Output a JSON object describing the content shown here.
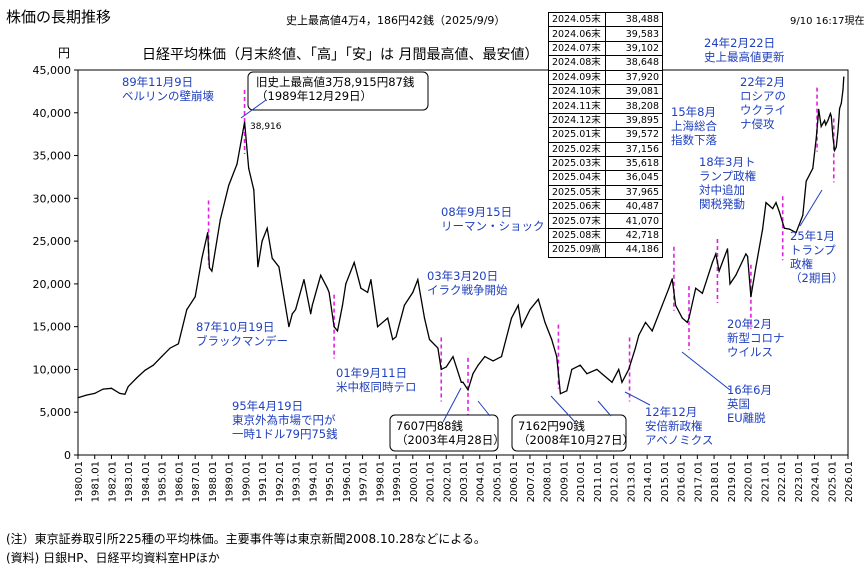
{
  "header": {
    "title": "株価の長期推移",
    "record_text": "史上最高値4万4，186円42銭（2025/9/9）",
    "timestamp": "9/10 16:17現在",
    "subtitle": "日経平均株価（月末終値、「高」「安」は 月間最高値、最安値）",
    "y_unit": "円"
  },
  "monthly_table": [
    {
      "month": "2024.05末",
      "value": "38,488"
    },
    {
      "month": "2024.06末",
      "value": "39,583"
    },
    {
      "month": "2024.07末",
      "value": "39,102"
    },
    {
      "month": "2024.08末",
      "value": "38,648"
    },
    {
      "month": "2024.09末",
      "value": "37,920"
    },
    {
      "month": "2024.10末",
      "value": "39,081"
    },
    {
      "month": "2024.11末",
      "value": "38,208"
    },
    {
      "month": "2024.12末",
      "value": "39,895"
    },
    {
      "month": "2025.01末",
      "value": "39,572"
    },
    {
      "month": "2025.02末",
      "value": "37,156"
    },
    {
      "month": "2025.03末",
      "value": "35,618"
    },
    {
      "month": "2025.04末",
      "value": "36,045"
    },
    {
      "month": "2025.05末",
      "value": "37,965"
    },
    {
      "month": "2025.06末",
      "value": "40,487"
    },
    {
      "month": "2025.07末",
      "value": "41,070"
    },
    {
      "month": "2025.08末",
      "value": "42,718"
    },
    {
      "month": "2025.09高",
      "value": "44,186"
    }
  ],
  "notes": [
    "(注）東京証券取引所225種の平均株価。主要事件等は東京新聞2008.10.28などによる。",
    "(資料) 日銀HP、日経平均資料室HPほか"
  ],
  "chart_data": {
    "type": "line",
    "title": "日経平均株価（月末終値、「高」「安」は 月間最高値、最安値）",
    "ylabel": "円",
    "ylim": [
      0,
      45000
    ],
    "yticks": [
      0,
      5000,
      10000,
      15000,
      20000,
      25000,
      30000,
      35000,
      40000,
      45000
    ],
    "ytick_labels": [
      "0",
      "5,000",
      "10,000",
      "15,000",
      "20,000",
      "25,000",
      "30,000",
      "35,000",
      "40,000",
      "45,000"
    ],
    "xlim": [
      1980.0,
      2026.0
    ],
    "xtick_labels": [
      "1980.01",
      "1981.01",
      "1982.01",
      "1983.01",
      "1984.01",
      "1985.01",
      "1986.01",
      "1987.01",
      "1988.01",
      "1989.01",
      "1990.01",
      "1991.01",
      "1992.01",
      "1993.01",
      "1994.01",
      "1995.01",
      "1996.01",
      "1997.01",
      "1998.01",
      "1999.01",
      "2000.01",
      "2001.01",
      "2002.01",
      "2003.01",
      "2004.01",
      "2005.01",
      "2006.01",
      "2007.01",
      "2008.01",
      "2009.01",
      "2010.01",
      "2011.01",
      "2012.01",
      "2013.01",
      "2014.01",
      "2015.01",
      "2016.01",
      "2017.01",
      "2018.01",
      "2019.01",
      "2020.01",
      "2021.01",
      "2022.01",
      "2023.01",
      "2024.01",
      "2025.01",
      "2026.01"
    ],
    "grid": false,
    "series": [
      {
        "points": [
          [
            1980.0,
            6700
          ],
          [
            1980.5,
            7000
          ],
          [
            1981.0,
            7200
          ],
          [
            1981.5,
            7700
          ],
          [
            1982.0,
            7800
          ],
          [
            1982.5,
            7200
          ],
          [
            1982.8,
            7100
          ],
          [
            1983.0,
            8000
          ],
          [
            1983.5,
            9000
          ],
          [
            1984.0,
            9900
          ],
          [
            1984.5,
            10500
          ],
          [
            1985.0,
            11500
          ],
          [
            1985.5,
            12500
          ],
          [
            1986.0,
            13000
          ],
          [
            1986.5,
            17000
          ],
          [
            1987.0,
            18500
          ],
          [
            1987.4,
            23000
          ],
          [
            1987.75,
            26000
          ],
          [
            1987.85,
            21900
          ],
          [
            1988.0,
            21500
          ],
          [
            1988.5,
            27500
          ],
          [
            1989.0,
            31500
          ],
          [
            1989.5,
            34000
          ],
          [
            1989.95,
            38916
          ],
          [
            1990.2,
            33500
          ],
          [
            1990.5,
            31000
          ],
          [
            1990.75,
            22000
          ],
          [
            1991.0,
            25000
          ],
          [
            1991.3,
            26500
          ],
          [
            1991.6,
            23000
          ],
          [
            1992.0,
            22000
          ],
          [
            1992.6,
            15000
          ],
          [
            1992.8,
            16500
          ],
          [
            1993.0,
            17000
          ],
          [
            1993.5,
            20500
          ],
          [
            1993.9,
            16500
          ],
          [
            1994.0,
            17500
          ],
          [
            1994.5,
            21000
          ],
          [
            1994.9,
            19500
          ],
          [
            1995.0,
            19000
          ],
          [
            1995.3,
            15000
          ],
          [
            1995.5,
            14500
          ],
          [
            1995.8,
            17500
          ],
          [
            1996.0,
            20000
          ],
          [
            1996.5,
            22500
          ],
          [
            1996.9,
            19500
          ],
          [
            1997.3,
            19000
          ],
          [
            1997.5,
            20500
          ],
          [
            1997.9,
            15000
          ],
          [
            1998.5,
            16000
          ],
          [
            1998.8,
            13500
          ],
          [
            1999.0,
            13800
          ],
          [
            1999.5,
            17500
          ],
          [
            2000.0,
            19000
          ],
          [
            2000.3,
            20500
          ],
          [
            2000.7,
            16000
          ],
          [
            2001.0,
            13500
          ],
          [
            2001.5,
            12500
          ],
          [
            2001.7,
            10000
          ],
          [
            2002.0,
            10300
          ],
          [
            2002.4,
            11500
          ],
          [
            2002.9,
            8500
          ],
          [
            2003.0,
            8500
          ],
          [
            2003.3,
            7607
          ],
          [
            2003.6,
            9500
          ],
          [
            2003.9,
            10500
          ],
          [
            2004.3,
            11500
          ],
          [
            2004.8,
            11000
          ],
          [
            2005.3,
            11500
          ],
          [
            2005.9,
            16000
          ],
          [
            2006.3,
            17500
          ],
          [
            2006.5,
            15000
          ],
          [
            2007.0,
            17000
          ],
          [
            2007.5,
            18200
          ],
          [
            2007.9,
            15500
          ],
          [
            2008.3,
            13500
          ],
          [
            2008.6,
            11500
          ],
          [
            2008.82,
            7162
          ],
          [
            2009.2,
            7500
          ],
          [
            2009.5,
            10000
          ],
          [
            2010.0,
            10500
          ],
          [
            2010.4,
            9500
          ],
          [
            2011.0,
            10000
          ],
          [
            2011.3,
            9500
          ],
          [
            2011.9,
            8500
          ],
          [
            2012.3,
            10000
          ],
          [
            2012.5,
            8500
          ],
          [
            2012.9,
            10000
          ],
          [
            2013.3,
            12500
          ],
          [
            2013.5,
            14000
          ],
          [
            2013.9,
            15500
          ],
          [
            2014.3,
            14500
          ],
          [
            2014.9,
            17500
          ],
          [
            2015.3,
            19500
          ],
          [
            2015.5,
            20600
          ],
          [
            2015.7,
            17500
          ],
          [
            2016.1,
            16000
          ],
          [
            2016.4,
            15500
          ],
          [
            2016.5,
            16000
          ],
          [
            2016.9,
            19500
          ],
          [
            2017.3,
            18900
          ],
          [
            2017.9,
            22500
          ],
          [
            2018.1,
            23500
          ],
          [
            2018.3,
            21500
          ],
          [
            2018.8,
            24100
          ],
          [
            2018.95,
            20000
          ],
          [
            2019.3,
            21000
          ],
          [
            2019.9,
            23500
          ],
          [
            2020.0,
            23200
          ],
          [
            2020.2,
            18500
          ],
          [
            2020.5,
            22000
          ],
          [
            2020.9,
            26400
          ],
          [
            2021.1,
            29500
          ],
          [
            2021.5,
            28800
          ],
          [
            2021.7,
            29500
          ],
          [
            2021.9,
            28400
          ],
          [
            2022.2,
            26500
          ],
          [
            2022.5,
            26400
          ],
          [
            2022.9,
            26000
          ],
          [
            2023.3,
            28000
          ],
          [
            2023.5,
            32000
          ],
          [
            2023.9,
            33500
          ],
          [
            2024.1,
            37000
          ],
          [
            2024.2,
            39200
          ],
          [
            2024.25,
            40400
          ],
          [
            2024.4,
            38400
          ],
          [
            2024.6,
            39100
          ],
          [
            2024.67,
            38600
          ],
          [
            2024.8,
            39100
          ],
          [
            2024.95,
            39900
          ],
          [
            2025.0,
            39600
          ],
          [
            2025.1,
            37200
          ],
          [
            2025.2,
            35600
          ],
          [
            2025.3,
            36000
          ],
          [
            2025.4,
            37900
          ],
          [
            2025.5,
            40500
          ],
          [
            2025.6,
            41100
          ],
          [
            2025.7,
            42700
          ],
          [
            2025.75,
            44186
          ]
        ]
      }
    ],
    "event_markers": [
      1987.8,
      1989.95,
      1995.3,
      2001.7,
      2003.3,
      2008.7,
      2012.95,
      2015.6,
      2016.5,
      2018.2,
      2020.2,
      2022.1,
      2024.15,
      2025.15
    ],
    "annotations": [
      {
        "id": "berlin",
        "lines": [
          "89年11月9日",
          "ベルリンの壁崩壊"
        ]
      },
      {
        "id": "peak",
        "lines": [
          "旧史上最高値3万8,915円87銭",
          "（1989年12月29日）"
        ]
      },
      {
        "id": "peak-value",
        "lines": [
          "38,916"
        ]
      },
      {
        "id": "black-monday",
        "lines": [
          "87年10月19日",
          "ブラックマンデー"
        ]
      },
      {
        "id": "yen79",
        "lines": [
          "95年4月19日",
          "東京外為市場で円が",
          "一時1ドル79円75銭"
        ]
      },
      {
        "id": "sep11",
        "lines": [
          "01年9月11日",
          "米中枢同時テロ"
        ]
      },
      {
        "id": "iraq",
        "lines": [
          "03年3月20日",
          "イラク戦争開始"
        ]
      },
      {
        "id": "low2003",
        "lines": [
          "7607円88銭",
          "（2003年4月28日）"
        ]
      },
      {
        "id": "lehman",
        "lines": [
          "08年9月15日",
          "リーマン・ショック"
        ]
      },
      {
        "id": "low2008",
        "lines": [
          "7162円90銭",
          "（2008年10月27日）"
        ]
      },
      {
        "id": "abenomics",
        "lines": [
          "12年12月",
          "安倍新政権",
          "アベノミクス"
        ]
      },
      {
        "id": "shanghai",
        "lines": [
          "15年8月",
          "上海総合",
          "指数下落"
        ]
      },
      {
        "id": "brexit",
        "lines": [
          "16年6月",
          "英国",
          "EU離脱"
        ]
      },
      {
        "id": "tariff",
        "lines": [
          "18年3月ト",
          "ランプ政権",
          "対中追加",
          "関税発動"
        ]
      },
      {
        "id": "covid",
        "lines": [
          "20年2月",
          "新型コロナ",
          "ウイルス"
        ]
      },
      {
        "id": "ukraine",
        "lines": [
          "22年2月",
          "ロシアの",
          "ウクライ",
          "ナ侵攻"
        ]
      },
      {
        "id": "newhigh",
        "lines": [
          "24年2月22日",
          "史上最高値更新"
        ]
      },
      {
        "id": "trump2",
        "lines": [
          "25年1月",
          "トランプ",
          "政権",
          "（2期目）"
        ]
      }
    ]
  }
}
